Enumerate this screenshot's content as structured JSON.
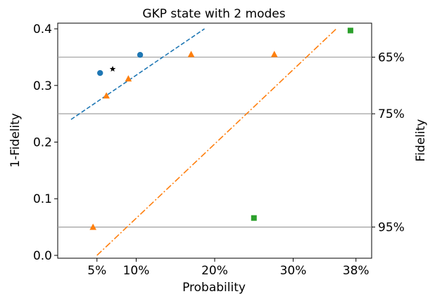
{
  "chart_data": {
    "type": "scatter",
    "title": "GKP state with 2 modes",
    "xlabel": "Probability",
    "ylabel": "1-Fidelity",
    "y2label": "Fidelity",
    "xlim": [
      0.0,
      0.4
    ],
    "ylim": [
      -0.005,
      0.41
    ],
    "x_ticks": [
      {
        "value": 0.05,
        "label": "5%"
      },
      {
        "value": 0.1,
        "label": "10%"
      },
      {
        "value": 0.2,
        "label": "20%"
      },
      {
        "value": 0.3,
        "label": "30%"
      },
      {
        "value": 0.38,
        "label": "38%"
      }
    ],
    "y_ticks": [
      {
        "value": 0.0,
        "label": "0.0"
      },
      {
        "value": 0.1,
        "label": "0.1"
      },
      {
        "value": 0.2,
        "label": "0.2"
      },
      {
        "value": 0.3,
        "label": "0.3"
      },
      {
        "value": 0.4,
        "label": "0.4"
      }
    ],
    "y2_ticks": [
      {
        "value": 0.35,
        "label": "65%"
      },
      {
        "value": 0.25,
        "label": "75%"
      },
      {
        "value": 0.05,
        "label": "95%"
      }
    ],
    "hlines": [
      0.35,
      0.25,
      0.05
    ],
    "grid": false,
    "series": [
      {
        "marker": "circle",
        "color": "#1f77b4",
        "x": [
          0.054,
          0.105
        ],
        "y": [
          0.322,
          0.354
        ]
      },
      {
        "marker": "triangle",
        "color": "#ff7f0e",
        "x": [
          0.045,
          0.062,
          0.09,
          0.17,
          0.276
        ],
        "y": [
          0.05,
          0.282,
          0.312,
          0.355,
          0.355
        ]
      },
      {
        "marker": "square",
        "color": "#2ca02c",
        "x": [
          0.25,
          0.373
        ],
        "y": [
          0.066,
          0.397
        ]
      },
      {
        "marker": "star",
        "color": "#000000",
        "x": [
          0.07
        ],
        "y": [
          0.329
        ]
      }
    ],
    "fit_lines": [
      {
        "color": "#1f77b4",
        "style": "dashed",
        "x": [
          0.017,
          0.187
        ],
        "y": [
          0.24,
          0.4
        ]
      },
      {
        "color": "#ff7f0e",
        "style": "dashdot",
        "x": [
          0.05,
          0.355
        ],
        "y": [
          0.0,
          0.4
        ]
      }
    ]
  }
}
